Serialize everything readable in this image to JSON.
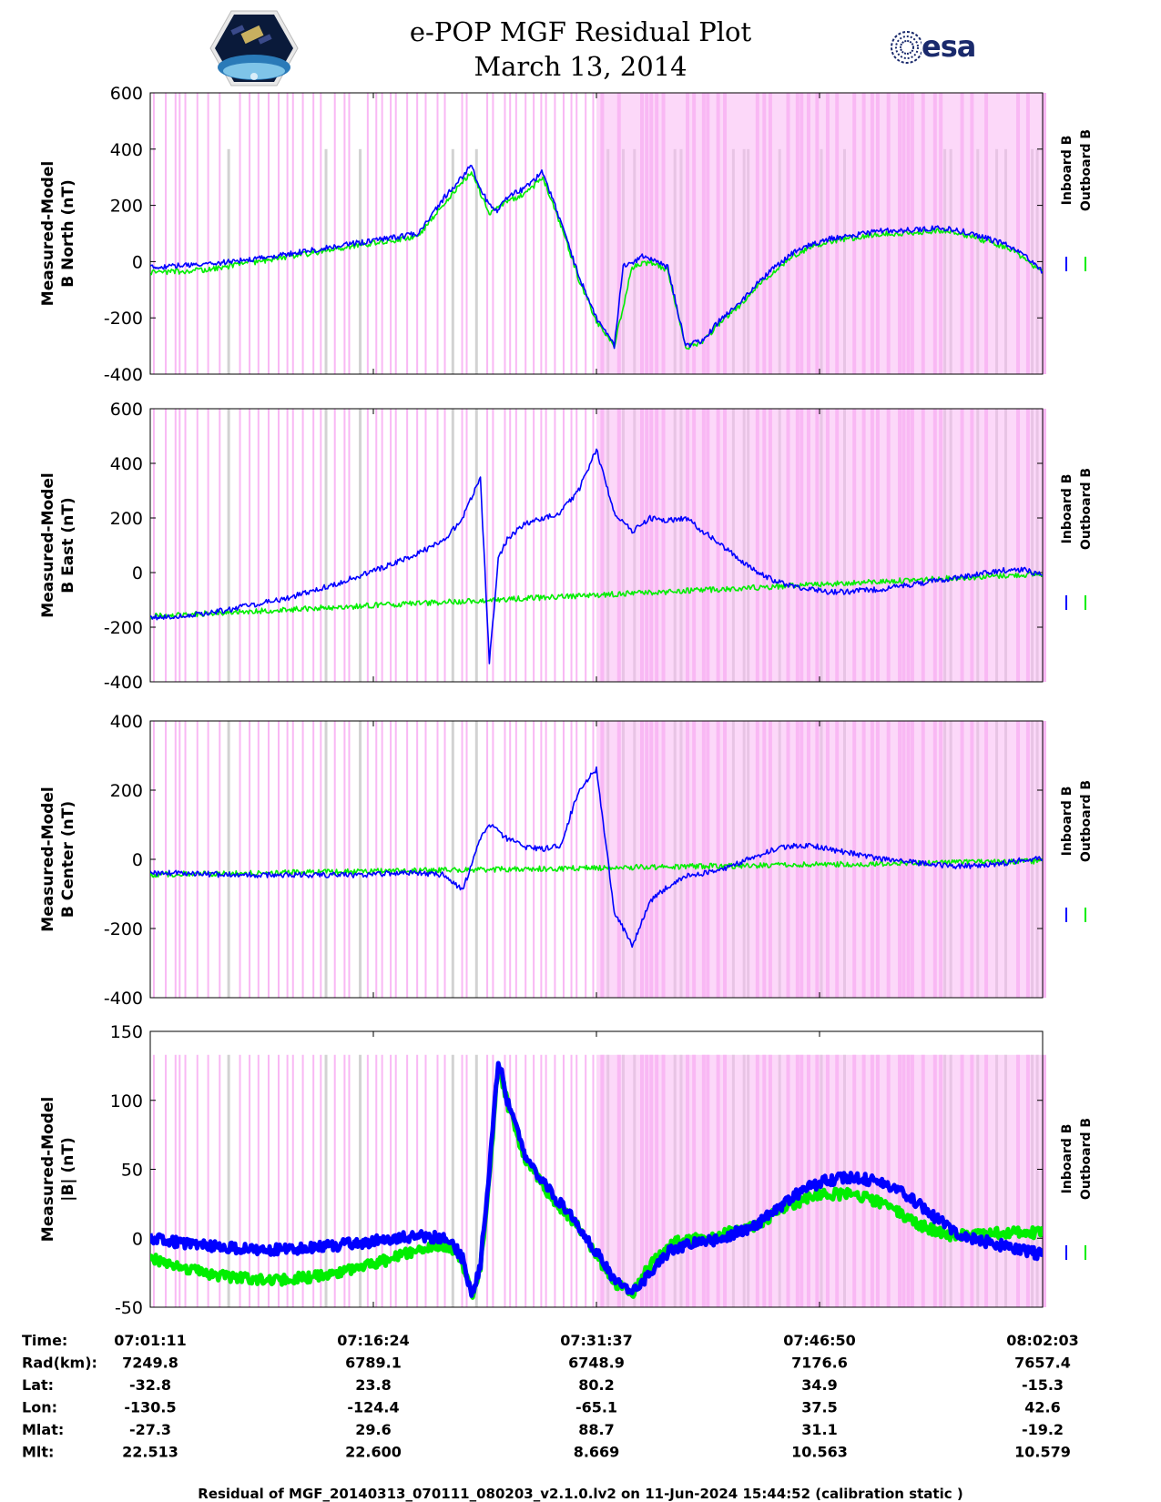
{
  "header": {
    "title_line1": "e-POP MGF Residual Plot",
    "title_line2": "March 13, 2014",
    "logo_left": "cassiope-mission-logo",
    "logo_right_text": "esa"
  },
  "colors": {
    "inboard": "#0000ff",
    "outboard": "#00ee00",
    "pink_band": "#f9b8f4",
    "gray_band": "#d2d2d2"
  },
  "chart_data": [
    {
      "type": "line",
      "ylabel_line1": "Measured-Model",
      "ylabel_line2": "B North (nT)",
      "ylim": [
        -400,
        600
      ],
      "yticks": [
        -400,
        -200,
        0,
        200,
        400,
        600
      ],
      "band_top": 600,
      "gray_band_top": 400,
      "legend": [
        "Inboard B",
        "Outboard B"
      ],
      "series": [
        {
          "name": "Inboard B",
          "color": "#0000ff",
          "x": [
            0,
            3,
            6,
            9,
            12,
            15,
            18,
            21,
            24,
            27,
            30,
            33,
            36,
            37,
            38,
            39,
            40,
            42,
            44,
            46,
            48,
            50,
            52,
            53,
            54,
            55,
            56,
            58,
            60,
            62,
            64,
            66,
            68,
            70,
            72,
            74,
            76,
            78,
            80,
            82,
            84,
            86,
            88,
            90,
            92,
            94,
            96,
            98,
            100
          ],
          "y": [
            -20,
            -15,
            -10,
            0,
            10,
            25,
            40,
            55,
            70,
            85,
            100,
            230,
            340,
            260,
            200,
            180,
            230,
            260,
            320,
            140,
            -50,
            -200,
            -300,
            -10,
            -10,
            20,
            10,
            -20,
            -300,
            -280,
            -200,
            -150,
            -80,
            -20,
            30,
            60,
            80,
            90,
            100,
            110,
            110,
            115,
            120,
            115,
            100,
            80,
            60,
            20,
            -35
          ]
        },
        {
          "name": "Outboard B",
          "color": "#00ee00",
          "x": [
            0,
            3,
            6,
            9,
            12,
            15,
            18,
            21,
            24,
            27,
            30,
            33,
            36,
            38,
            40,
            42,
            44,
            46,
            48,
            50,
            52,
            54,
            56,
            58,
            60,
            62,
            64,
            66,
            68,
            70,
            72,
            74,
            76,
            78,
            80,
            82,
            84,
            86,
            88,
            90,
            92,
            94,
            96,
            98,
            100
          ],
          "y": [
            -40,
            -35,
            -30,
            -15,
            0,
            15,
            30,
            45,
            60,
            75,
            90,
            210,
            320,
            170,
            215,
            240,
            300,
            130,
            -60,
            -210,
            -300,
            -20,
            0,
            -30,
            -305,
            -285,
            -210,
            -160,
            -90,
            -30,
            20,
            50,
            70,
            80,
            90,
            100,
            100,
            105,
            110,
            105,
            90,
            70,
            50,
            10,
            -40
          ]
        }
      ]
    },
    {
      "type": "line",
      "ylabel_line1": "Measured-Model",
      "ylabel_line2": "B East (nT)",
      "ylim": [
        -400,
        600
      ],
      "yticks": [
        -400,
        -200,
        0,
        200,
        400,
        600
      ],
      "band_top": 600,
      "gray_band_top": 600,
      "legend": [
        "Inboard B",
        "Outboard B"
      ],
      "series": [
        {
          "name": "Inboard B",
          "color": "#0000ff",
          "x": [
            0,
            3,
            6,
            9,
            12,
            15,
            18,
            21,
            24,
            27,
            30,
            33,
            35,
            37,
            38,
            39,
            40,
            41,
            42,
            44,
            46,
            48,
            50,
            52,
            54,
            56,
            58,
            60,
            62,
            64,
            66,
            68,
            70,
            72,
            74,
            76,
            78,
            80,
            82,
            84,
            86,
            88,
            90,
            92,
            94,
            96,
            98,
            100
          ],
          "y": [
            -165,
            -160,
            -150,
            -135,
            -115,
            -95,
            -70,
            -40,
            -5,
            30,
            70,
            120,
            200,
            350,
            -330,
            50,
            120,
            150,
            180,
            200,
            220,
            300,
            450,
            220,
            150,
            200,
            190,
            200,
            150,
            100,
            50,
            0,
            -30,
            -50,
            -60,
            -70,
            -70,
            -65,
            -60,
            -50,
            -40,
            -30,
            -20,
            -10,
            0,
            10,
            10,
            -10
          ]
        },
        {
          "name": "Outboard B",
          "color": "#00ee00",
          "x": [
            0,
            2,
            4,
            6,
            100
          ],
          "y": [
            -160,
            -158,
            -155,
            -150,
            -5
          ]
        }
      ]
    },
    {
      "type": "line",
      "ylabel_line1": "Measured-Model",
      "ylabel_line2": "B Center (nT)",
      "ylim": [
        -400,
        400
      ],
      "yticks": [
        -400,
        -200,
        0,
        200,
        400
      ],
      "band_top": 400,
      "gray_band_top": 400,
      "legend": [
        "Inboard B",
        "Outboard B"
      ],
      "series": [
        {
          "name": "Inboard B",
          "color": "#0000ff",
          "x": [
            0,
            3,
            6,
            9,
            12,
            15,
            18,
            21,
            24,
            27,
            30,
            33,
            35,
            37,
            38,
            40,
            42,
            44,
            46,
            48,
            50,
            52,
            54,
            56,
            58,
            60,
            62,
            64,
            66,
            68,
            70,
            72,
            74,
            76,
            78,
            80,
            82,
            84,
            86,
            88,
            90,
            92,
            94,
            96,
            98,
            100
          ],
          "y": [
            -40,
            -40,
            -42,
            -45,
            -45,
            -45,
            -45,
            -45,
            -45,
            -40,
            -40,
            -45,
            -90,
            60,
            100,
            60,
            35,
            30,
            40,
            200,
            260,
            -150,
            -250,
            -120,
            -80,
            -50,
            -40,
            -30,
            -10,
            10,
            30,
            40,
            40,
            30,
            20,
            10,
            0,
            -5,
            -10,
            -15,
            -20,
            -20,
            -15,
            -10,
            0,
            0
          ]
        },
        {
          "name": "Outboard B",
          "color": "#00ee00",
          "x": [
            0,
            2,
            4,
            6,
            100
          ],
          "y": [
            -45,
            -43,
            -42,
            -42,
            -5
          ]
        }
      ]
    },
    {
      "type": "line",
      "ylabel_line1": "Measured-Model",
      "ylabel_line2": "|B| (nT)",
      "ylim": [
        -50,
        150
      ],
      "yticks": [
        -50,
        0,
        50,
        100,
        150
      ],
      "band_top": 133,
      "gray_band_top": 133,
      "legend": [
        "Inboard B",
        "Outboard B"
      ],
      "series": [
        {
          "name": "Inboard B",
          "color": "#0000ff",
          "x": [
            0,
            3,
            6,
            9,
            12,
            15,
            18,
            21,
            24,
            27,
            30,
            33,
            34,
            35,
            36,
            37,
            38,
            39,
            40,
            42,
            44,
            46,
            48,
            50,
            52,
            54,
            56,
            58,
            60,
            62,
            64,
            66,
            68,
            70,
            72,
            74,
            76,
            78,
            80,
            82,
            84,
            86,
            88,
            90,
            92,
            94,
            96,
            98,
            100
          ],
          "y": [
            0,
            -3,
            -5,
            -7,
            -8,
            -8,
            -7,
            -5,
            -3,
            0,
            2,
            0,
            -5,
            -15,
            -40,
            -20,
            50,
            130,
            100,
            60,
            40,
            25,
            10,
            -10,
            -30,
            -40,
            -25,
            -10,
            -5,
            -3,
            0,
            5,
            10,
            20,
            30,
            38,
            42,
            44,
            43,
            40,
            35,
            25,
            15,
            5,
            0,
            -3,
            -6,
            -9,
            -12
          ]
        },
        {
          "name": "Outboard B",
          "color": "#00ee00",
          "x": [
            0,
            3,
            6,
            9,
            12,
            15,
            18,
            21,
            24,
            27,
            30,
            33,
            34,
            35,
            36,
            37,
            38,
            39,
            40,
            42,
            44,
            46,
            48,
            50,
            52,
            54,
            56,
            58,
            60,
            62,
            64,
            66,
            68,
            70,
            72,
            74,
            76,
            78,
            80,
            82,
            84,
            86,
            88,
            90,
            92,
            94,
            96,
            98,
            100
          ],
          "y": [
            -15,
            -20,
            -25,
            -28,
            -30,
            -30,
            -28,
            -25,
            -20,
            -15,
            -8,
            -5,
            -8,
            -18,
            -42,
            -22,
            45,
            128,
            98,
            58,
            38,
            22,
            8,
            -12,
            -32,
            -40,
            -20,
            -5,
            0,
            0,
            3,
            6,
            10,
            18,
            25,
            30,
            32,
            32,
            30,
            25,
            18,
            10,
            5,
            2,
            2,
            3,
            4,
            4,
            4
          ]
        }
      ]
    }
  ],
  "x_axis": {
    "tick_fracs": [
      0,
      0.25,
      0.5,
      0.75,
      1.0
    ]
  },
  "info_table": {
    "rows": [
      {
        "label": "Time:",
        "values": [
          "07:01:11",
          "07:16:24",
          "07:31:37",
          "07:46:50",
          "08:02:03"
        ]
      },
      {
        "label": "Rad(km):",
        "values": [
          "7249.8",
          "6789.1",
          "6748.9",
          "7176.6",
          "7657.4"
        ]
      },
      {
        "label": "Lat:",
        "values": [
          "-32.8",
          "23.8",
          "80.2",
          "34.9",
          "-15.3"
        ]
      },
      {
        "label": "Lon:",
        "values": [
          "-130.5",
          "-124.4",
          "-65.1",
          "37.5",
          "42.6"
        ]
      },
      {
        "label": "Mlat:",
        "values": [
          "-27.3",
          "29.6",
          "88.7",
          "31.1",
          "-19.2"
        ]
      },
      {
        "label": "Mlt:",
        "values": [
          "22.513",
          "22.600",
          "8.669",
          "10.563",
          "10.579"
        ]
      }
    ]
  },
  "footer": {
    "text": "Residual of MGF_20140313_070111_080203_v2.1.0.lv2 on 11-Jun-2024 15:44:52 (calibration static )"
  }
}
